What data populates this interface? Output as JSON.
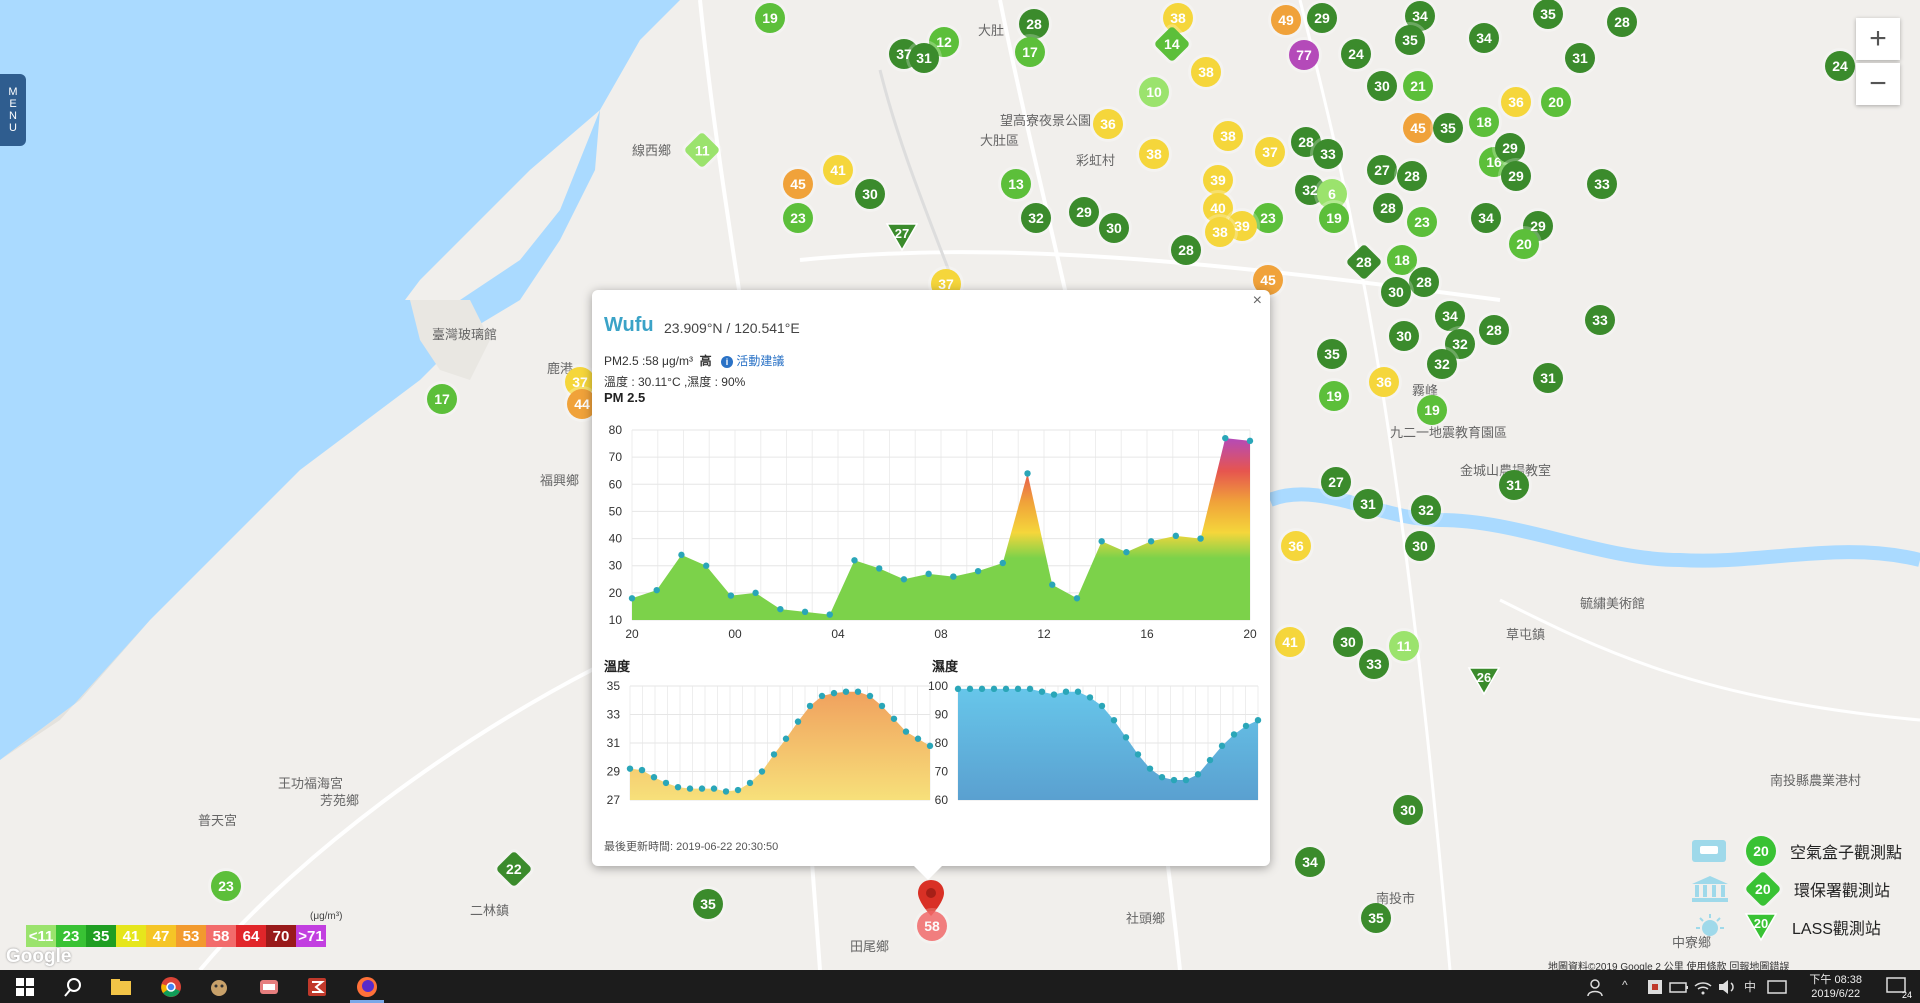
{
  "menu": {
    "label_letters": [
      "M",
      "E",
      "N",
      "U"
    ]
  },
  "zoom": {
    "in": "+",
    "out": "−"
  },
  "colors": {
    "water": "#aadaff",
    "land": "#f1efec",
    "green": "#5cbf3a",
    "green_dark": "#3b8b2c",
    "light_green": "#9be36d",
    "yellow": "#f5d63b",
    "orange": "#f0a23a",
    "red": "#d8352e",
    "purple": "#b44ab9",
    "accent": "#3ba3c7"
  },
  "places": [
    {
      "name": "線西鄉",
      "x": 632,
      "y": 140
    },
    {
      "name": "臺灣玻璃館",
      "x": 432,
      "y": 324
    },
    {
      "name": "鹿港",
      "x": 547,
      "y": 358
    },
    {
      "name": "福興鄉",
      "x": 540,
      "y": 470
    },
    {
      "name": "芳苑鄉",
      "x": 320,
      "y": 790
    },
    {
      "name": "二林鎮",
      "x": 470,
      "y": 900
    },
    {
      "name": "王功福海宮",
      "x": 278,
      "y": 773
    },
    {
      "name": "普天宮",
      "x": 198,
      "y": 810
    },
    {
      "name": "田尾鄉",
      "x": 850,
      "y": 936
    },
    {
      "name": "社頭鄉",
      "x": 1126,
      "y": 908
    },
    {
      "name": "南投市",
      "x": 1376,
      "y": 888
    },
    {
      "name": "草屯鎮",
      "x": 1506,
      "y": 624
    },
    {
      "name": "大肚區",
      "x": 980,
      "y": 130
    },
    {
      "name": "大肚",
      "x": 978,
      "y": 20
    },
    {
      "name": "望高寮夜景公園",
      "x": 1000,
      "y": 110
    },
    {
      "name": "彩虹村",
      "x": 1076,
      "y": 150
    },
    {
      "name": "中寮鄉",
      "x": 1672,
      "y": 932
    },
    {
      "name": "九二一地震教育園區",
      "x": 1390,
      "y": 422
    },
    {
      "name": "霧峰",
      "x": 1412,
      "y": 380
    },
    {
      "name": "金城山農場教室",
      "x": 1460,
      "y": 460
    },
    {
      "name": "毓繡美術館",
      "x": 1580,
      "y": 593
    },
    {
      "name": "南投縣農業港村",
      "x": 1770,
      "y": 770
    }
  ],
  "stations": [
    {
      "v": "19",
      "t": "c",
      "c": "green",
      "x": 770,
      "y": 18
    },
    {
      "v": "28",
      "t": "c",
      "c": "green_dark",
      "x": 1034,
      "y": 24
    },
    {
      "v": "38",
      "t": "c",
      "c": "yellow",
      "x": 1178,
      "y": 18
    },
    {
      "v": "49",
      "t": "c",
      "c": "orange",
      "x": 1286,
      "y": 20
    },
    {
      "v": "29",
      "t": "c",
      "c": "green_dark",
      "x": 1322,
      "y": 18
    },
    {
      "v": "34",
      "t": "c",
      "c": "green_dark",
      "x": 1420,
      "y": 16
    },
    {
      "v": "35",
      "t": "c",
      "c": "green_dark",
      "x": 1548,
      "y": 14
    },
    {
      "v": "28",
      "t": "c",
      "c": "green_dark",
      "x": 1622,
      "y": 22
    },
    {
      "v": "12",
      "t": "c",
      "c": "green",
      "x": 944,
      "y": 42
    },
    {
      "v": "37",
      "t": "c",
      "c": "green_dark",
      "x": 904,
      "y": 54
    },
    {
      "v": "31",
      "t": "c",
      "c": "green_dark",
      "x": 924,
      "y": 58
    },
    {
      "v": "17",
      "t": "c",
      "c": "green",
      "x": 1030,
      "y": 52
    },
    {
      "v": "14",
      "t": "d",
      "c": "green",
      "x": 1172,
      "y": 44
    },
    {
      "v": "77",
      "t": "c",
      "c": "purple",
      "x": 1304,
      "y": 55
    },
    {
      "v": "24",
      "t": "c",
      "c": "green_dark",
      "x": 1356,
      "y": 54
    },
    {
      "v": "35",
      "t": "c",
      "c": "green_dark",
      "x": 1410,
      "y": 40
    },
    {
      "v": "34",
      "t": "c",
      "c": "green_dark",
      "x": 1484,
      "y": 38
    },
    {
      "v": "31",
      "t": "c",
      "c": "green_dark",
      "x": 1580,
      "y": 58
    },
    {
      "v": "24",
      "t": "c",
      "c": "green_dark",
      "x": 1840,
      "y": 66
    },
    {
      "v": "38",
      "t": "c",
      "c": "yellow",
      "x": 1206,
      "y": 72
    },
    {
      "v": "30",
      "t": "c",
      "c": "green_dark",
      "x": 1382,
      "y": 86
    },
    {
      "v": "21",
      "t": "c",
      "c": "green",
      "x": 1418,
      "y": 86
    },
    {
      "v": "20",
      "t": "c",
      "c": "green",
      "x": 1556,
      "y": 102
    },
    {
      "v": "36",
      "t": "c",
      "c": "yellow",
      "x": 1516,
      "y": 102
    },
    {
      "v": "10",
      "t": "c",
      "c": "light_green",
      "x": 1154,
      "y": 92
    },
    {
      "v": "36",
      "t": "c",
      "c": "yellow",
      "x": 1108,
      "y": 124
    },
    {
      "v": "38",
      "t": "c",
      "c": "yellow",
      "x": 1228,
      "y": 136
    },
    {
      "v": "45",
      "t": "c",
      "c": "orange",
      "x": 1418,
      "y": 128
    },
    {
      "v": "35",
      "t": "c",
      "c": "green_dark",
      "x": 1448,
      "y": 128
    },
    {
      "v": "18",
      "t": "c",
      "c": "green",
      "x": 1484,
      "y": 122
    },
    {
      "v": "11",
      "t": "d",
      "c": "light_green",
      "x": 702,
      "y": 150
    },
    {
      "v": "41",
      "t": "c",
      "c": "yellow",
      "x": 838,
      "y": 170
    },
    {
      "v": "45",
      "t": "c",
      "c": "orange",
      "x": 798,
      "y": 184
    },
    {
      "v": "30",
      "t": "c",
      "c": "green_dark",
      "x": 870,
      "y": 194
    },
    {
      "v": "13",
      "t": "c",
      "c": "green",
      "x": 1016,
      "y": 184
    },
    {
      "v": "38",
      "t": "c",
      "c": "yellow",
      "x": 1154,
      "y": 154
    },
    {
      "v": "37",
      "t": "c",
      "c": "yellow",
      "x": 1270,
      "y": 152
    },
    {
      "v": "28",
      "t": "c",
      "c": "green_dark",
      "x": 1306,
      "y": 142
    },
    {
      "v": "33",
      "t": "c",
      "c": "green_dark",
      "x": 1328,
      "y": 154
    },
    {
      "v": "27",
      "t": "c",
      "c": "green_dark",
      "x": 1382,
      "y": 170
    },
    {
      "v": "28",
      "t": "c",
      "c": "green_dark",
      "x": 1412,
      "y": 176
    },
    {
      "v": "16",
      "t": "c",
      "c": "green",
      "x": 1494,
      "y": 162
    },
    {
      "v": "29",
      "t": "c",
      "c": "green_dark",
      "x": 1510,
      "y": 148
    },
    {
      "v": "29",
      "t": "c",
      "c": "green_dark",
      "x": 1516,
      "y": 176
    },
    {
      "v": "33",
      "t": "c",
      "c": "green_dark",
      "x": 1602,
      "y": 184
    },
    {
      "v": "39",
      "t": "c",
      "c": "yellow",
      "x": 1218,
      "y": 180
    },
    {
      "v": "32",
      "t": "c",
      "c": "green_dark",
      "x": 1310,
      "y": 190
    },
    {
      "v": "6",
      "t": "c",
      "c": "light_green",
      "x": 1332,
      "y": 194
    },
    {
      "v": "23",
      "t": "c",
      "c": "green",
      "x": 798,
      "y": 218
    },
    {
      "v": "32",
      "t": "c",
      "c": "green_dark",
      "x": 1036,
      "y": 218
    },
    {
      "v": "29",
      "t": "c",
      "c": "green_dark",
      "x": 1084,
      "y": 212
    },
    {
      "v": "30",
      "t": "c",
      "c": "green_dark",
      "x": 1114,
      "y": 228
    },
    {
      "v": "40",
      "t": "c",
      "c": "yellow",
      "x": 1218,
      "y": 208
    },
    {
      "v": "23",
      "t": "c",
      "c": "green",
      "x": 1268,
      "y": 218
    },
    {
      "v": "19",
      "t": "c",
      "c": "green",
      "x": 1334,
      "y": 218
    },
    {
      "v": "28",
      "t": "c",
      "c": "green_dark",
      "x": 1388,
      "y": 208
    },
    {
      "v": "23",
      "t": "c",
      "c": "green",
      "x": 1422,
      "y": 222
    },
    {
      "v": "34",
      "t": "c",
      "c": "green_dark",
      "x": 1486,
      "y": 218
    },
    {
      "v": "29",
      "t": "c",
      "c": "green_dark",
      "x": 1538,
      "y": 226
    },
    {
      "v": "27",
      "t": "t",
      "c": "green_dark",
      "x": 902,
      "y": 232
    },
    {
      "v": "39",
      "t": "c",
      "c": "yellow",
      "x": 1242,
      "y": 226
    },
    {
      "v": "38",
      "t": "c",
      "c": "yellow",
      "x": 1220,
      "y": 232
    },
    {
      "v": "28",
      "t": "c",
      "c": "green_dark",
      "x": 1186,
      "y": 250
    },
    {
      "v": "28",
      "t": "d",
      "c": "green_dark",
      "x": 1364,
      "y": 262
    },
    {
      "v": "18",
      "t": "c",
      "c": "green",
      "x": 1402,
      "y": 260
    },
    {
      "v": "20",
      "t": "c",
      "c": "green",
      "x": 1524,
      "y": 244
    },
    {
      "v": "37",
      "t": "c",
      "c": "yellow",
      "x": 946,
      "y": 284
    },
    {
      "v": "45",
      "t": "c",
      "c": "orange",
      "x": 1268,
      "y": 280
    },
    {
      "v": "28",
      "t": "c",
      "c": "green_dark",
      "x": 1424,
      "y": 282
    },
    {
      "v": "30",
      "t": "c",
      "c": "green_dark",
      "x": 1396,
      "y": 292
    },
    {
      "v": "34",
      "t": "c",
      "c": "green_dark",
      "x": 1450,
      "y": 316
    },
    {
      "v": "33",
      "t": "c",
      "c": "green_dark",
      "x": 1600,
      "y": 320
    },
    {
      "v": "30",
      "t": "c",
      "c": "green_dark",
      "x": 1404,
      "y": 336
    },
    {
      "v": "32",
      "t": "c",
      "c": "green_dark",
      "x": 1460,
      "y": 344
    },
    {
      "v": "28",
      "t": "c",
      "c": "green_dark",
      "x": 1494,
      "y": 330
    },
    {
      "v": "35",
      "t": "c",
      "c": "green_dark",
      "x": 1332,
      "y": 354
    },
    {
      "v": "32",
      "t": "c",
      "c": "green_dark",
      "x": 1442,
      "y": 364
    },
    {
      "v": "36",
      "t": "c",
      "c": "yellow",
      "x": 1384,
      "y": 382
    },
    {
      "v": "31",
      "t": "c",
      "c": "green_dark",
      "x": 1548,
      "y": 378
    },
    {
      "v": "17",
      "t": "c",
      "c": "green",
      "x": 442,
      "y": 399
    },
    {
      "v": "37",
      "t": "c",
      "c": "yellow",
      "x": 580,
      "y": 382
    },
    {
      "v": "44",
      "t": "c",
      "c": "orange",
      "x": 582,
      "y": 404
    },
    {
      "v": "19",
      "t": "c",
      "c": "green",
      "x": 1334,
      "y": 396
    },
    {
      "v": "19",
      "t": "c",
      "c": "green",
      "x": 1432,
      "y": 410
    },
    {
      "v": "27",
      "t": "c",
      "c": "green_dark",
      "x": 1336,
      "y": 482
    },
    {
      "v": "31",
      "t": "c",
      "c": "green_dark",
      "x": 1368,
      "y": 504
    },
    {
      "v": "32",
      "t": "c",
      "c": "green_dark",
      "x": 1426,
      "y": 510
    },
    {
      "v": "31",
      "t": "c",
      "c": "green_dark",
      "x": 1514,
      "y": 485
    },
    {
      "v": "36",
      "t": "c",
      "c": "yellow",
      "x": 1296,
      "y": 546
    },
    {
      "v": "30",
      "t": "c",
      "c": "green_dark",
      "x": 1420,
      "y": 546
    },
    {
      "v": "41",
      "t": "c",
      "c": "yellow",
      "x": 1290,
      "y": 642
    },
    {
      "v": "30",
      "t": "c",
      "c": "green_dark",
      "x": 1348,
      "y": 642
    },
    {
      "v": "11",
      "t": "c",
      "c": "light_green",
      "x": 1404,
      "y": 646
    },
    {
      "v": "33",
      "t": "c",
      "c": "green_dark",
      "x": 1374,
      "y": 664
    },
    {
      "v": "26",
      "t": "t",
      "c": "green_dark",
      "x": 1484,
      "y": 676
    },
    {
      "v": "30",
      "t": "c",
      "c": "green_dark",
      "x": 1408,
      "y": 810
    },
    {
      "v": "34",
      "t": "c",
      "c": "green_dark",
      "x": 1310,
      "y": 862
    },
    {
      "v": "35",
      "t": "c",
      "c": "green_dark",
      "x": 1376,
      "y": 918
    },
    {
      "v": "22",
      "t": "d",
      "c": "green_dark",
      "x": 514,
      "y": 869
    },
    {
      "v": "23",
      "t": "c",
      "c": "green",
      "x": 226,
      "y": 886
    },
    {
      "v": "35",
      "t": "c",
      "c": "green_dark",
      "x": 708,
      "y": 904
    }
  ],
  "selected_marker": {
    "value": "58"
  },
  "popup": {
    "close": "×",
    "site": "Wufu",
    "coords": "23.909°N / 120.541°E",
    "pm_line": "PM2.5 :58 μg/m³",
    "level": "高",
    "advice": "活動建議",
    "info_icon": "i",
    "weather": "溫度 : 30.11°C ,濕度 : 90%",
    "pm_title": "PM 2.5",
    "temp_title": "溫度",
    "humid_title": "濕度",
    "updated": "最後更新時間: 2019-06-22 20:30:50"
  },
  "chart_data": [
    {
      "type": "area",
      "title": "PM 2.5",
      "x_ticks": [
        "20",
        "00",
        "04",
        "08",
        "12",
        "16",
        "20"
      ],
      "y_ticks": [
        10,
        20,
        30,
        40,
        50,
        60,
        70,
        80
      ],
      "ylim": [
        10,
        80
      ],
      "values": [
        18,
        21,
        34,
        30,
        19,
        20,
        14,
        13,
        12,
        32,
        29,
        25,
        27,
        26,
        28,
        31,
        64,
        23,
        18,
        39,
        35,
        39,
        41,
        40,
        77,
        76
      ]
    },
    {
      "type": "area",
      "title": "溫度",
      "y_ticks": [
        27,
        29,
        31,
        33,
        35
      ],
      "ylim": [
        27,
        35
      ],
      "values": [
        29.2,
        29.1,
        28.6,
        28.2,
        27.9,
        27.8,
        27.8,
        27.8,
        27.6,
        27.7,
        28.2,
        29.0,
        30.2,
        31.3,
        32.5,
        33.6,
        34.3,
        34.5,
        34.6,
        34.6,
        34.3,
        33.6,
        32.7,
        31.8,
        31.3,
        30.8
      ]
    },
    {
      "type": "area",
      "title": "濕度",
      "y_ticks": [
        60,
        70,
        80,
        90,
        100
      ],
      "ylim": [
        60,
        100
      ],
      "values": [
        99,
        99,
        99,
        99,
        99,
        99,
        99,
        98,
        97,
        98,
        98,
        96,
        93,
        88,
        82,
        76,
        71,
        68,
        67,
        67,
        69,
        74,
        79,
        83,
        86,
        88
      ]
    }
  ],
  "legend_scale": [
    {
      "label": "<11",
      "color": "#9be36d"
    },
    {
      "label": "23",
      "color": "#39c234"
    },
    {
      "label": "35",
      "color": "#1f9e22"
    },
    {
      "label": "41",
      "color": "#e6e61c"
    },
    {
      "label": "47",
      "color": "#f5c526"
    },
    {
      "label": "53",
      "color": "#f29a2e"
    },
    {
      "label": "58",
      "color": "#f26b6b"
    },
    {
      "label": "64",
      "color": "#e1262a"
    },
    {
      "label": "70",
      "color": "#991a1a"
    },
    {
      "label": ">71",
      "color": "#c23fe0"
    }
  ],
  "legend_unit": "(μg/m³)",
  "map_legend": [
    {
      "label": "空氣盒子觀測點",
      "num": "20"
    },
    {
      "label": "環保署觀測站",
      "num": "20"
    },
    {
      "label": "LASS觀測站",
      "num": "20"
    }
  ],
  "google_logo": "Google",
  "attribution": "地圖資料©2019 Google    2 公里          使用條款    回報地圖錯誤",
  "clock": {
    "time": "下午 08:38",
    "date": "2019/6/22"
  },
  "tray": {
    "ime": "中",
    "notif": "24"
  }
}
